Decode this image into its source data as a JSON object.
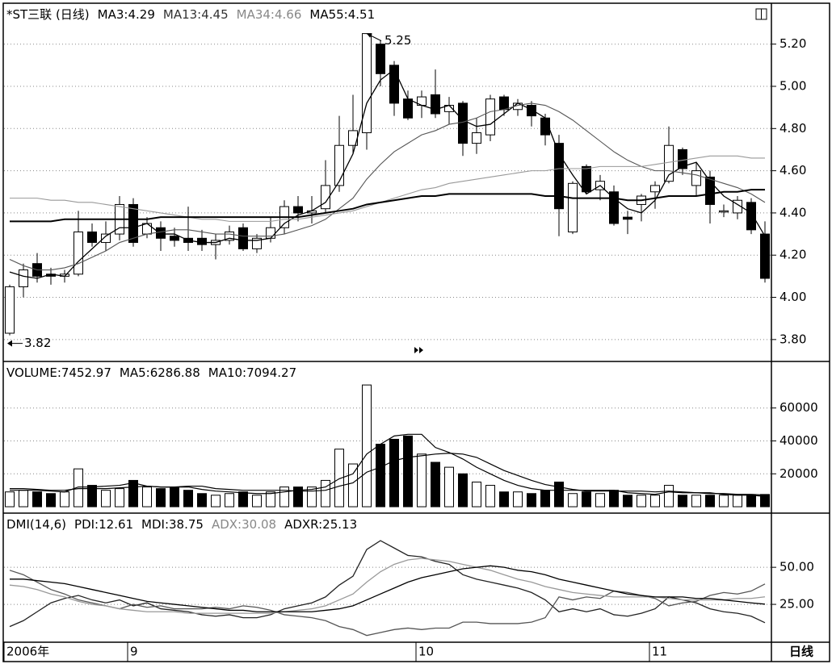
{
  "chart_data": [
    {
      "type": "candlestick",
      "title": "*ST三联 (日线)",
      "categories": [
        "2006年",
        null,
        null,
        null,
        null,
        null,
        null,
        null,
        null,
        "9",
        null,
        null,
        null,
        null,
        null,
        null,
        null,
        null,
        null,
        null,
        null,
        null,
        null,
        null,
        null,
        null,
        null,
        null,
        null,
        null,
        "10",
        null,
        null,
        null,
        null,
        null,
        null,
        null,
        null,
        null,
        null,
        null,
        null,
        null,
        null,
        null,
        null,
        "11",
        null,
        null,
        null,
        null,
        null,
        null,
        null,
        null
      ],
      "open": [
        3.83,
        4.05,
        4.16,
        4.11,
        4.1,
        4.11,
        4.31,
        4.26,
        4.3,
        4.44,
        4.3,
        4.33,
        4.29,
        4.28,
        4.28,
        4.25,
        4.27,
        4.33,
        4.23,
        4.28,
        4.33,
        4.43,
        4.4,
        4.42,
        4.53,
        4.72,
        4.78,
        5.2,
        5.1,
        4.94,
        4.91,
        4.96,
        4.88,
        4.92,
        4.73,
        4.77,
        4.95,
        4.89,
        4.91,
        4.85,
        4.73,
        4.31,
        4.62,
        4.51,
        4.5,
        4.38,
        4.44,
        4.5,
        4.55,
        4.7,
        4.53,
        4.57,
        4.41,
        4.4,
        4.45,
        4.3
      ],
      "high": [
        4.06,
        4.16,
        4.21,
        4.14,
        4.13,
        4.41,
        4.35,
        4.36,
        4.48,
        4.47,
        4.38,
        4.36,
        4.33,
        4.43,
        4.32,
        4.3,
        4.34,
        4.35,
        4.3,
        4.38,
        4.46,
        4.48,
        4.48,
        4.65,
        4.86,
        4.96,
        5.25,
        5.22,
        5.12,
        4.98,
        4.98,
        5.08,
        4.95,
        4.93,
        4.85,
        4.96,
        4.96,
        4.94,
        4.93,
        4.87,
        4.77,
        4.55,
        4.63,
        4.58,
        4.53,
        4.41,
        4.49,
        4.55,
        4.81,
        4.71,
        4.64,
        4.6,
        4.44,
        4.48,
        4.47,
        4.36
      ],
      "low": [
        3.82,
        4.0,
        4.07,
        4.06,
        4.07,
        4.1,
        4.24,
        4.22,
        4.27,
        4.24,
        4.28,
        4.22,
        4.24,
        4.22,
        4.22,
        4.18,
        4.25,
        4.22,
        4.21,
        4.26,
        4.3,
        4.36,
        4.35,
        4.4,
        4.5,
        4.68,
        4.7,
        5.0,
        4.86,
        4.84,
        4.85,
        4.85,
        4.82,
        4.67,
        4.68,
        4.74,
        4.86,
        4.86,
        4.81,
        4.72,
        4.29,
        4.3,
        4.49,
        4.46,
        4.34,
        4.3,
        4.36,
        4.42,
        4.54,
        4.58,
        4.48,
        4.35,
        4.38,
        4.37,
        4.3,
        4.07
      ],
      "close": [
        4.05,
        4.13,
        4.1,
        4.1,
        4.11,
        4.31,
        4.26,
        4.3,
        4.44,
        4.26,
        4.35,
        4.28,
        4.27,
        4.26,
        4.25,
        4.27,
        4.31,
        4.23,
        4.28,
        4.33,
        4.43,
        4.4,
        4.41,
        4.53,
        4.72,
        4.79,
        5.25,
        5.06,
        4.92,
        4.85,
        4.95,
        4.87,
        4.91,
        4.73,
        4.78,
        4.94,
        4.89,
        4.92,
        4.86,
        4.77,
        4.42,
        4.54,
        4.5,
        4.55,
        4.35,
        4.37,
        4.48,
        4.53,
        4.72,
        4.61,
        4.6,
        4.44,
        4.41,
        4.46,
        4.32,
        4.09
      ],
      "up_color": "#ffffff",
      "down_color": "#000000",
      "series": [
        {
          "name": "MA3:4.29",
          "color": "#000000",
          "values": [
            4.12,
            4.1,
            4.09,
            4.11,
            4.1,
            4.17,
            4.23,
            4.29,
            4.33,
            4.33,
            4.35,
            4.3,
            4.3,
            4.27,
            4.26,
            4.26,
            4.28,
            4.27,
            4.27,
            4.28,
            4.35,
            4.39,
            4.41,
            4.45,
            4.55,
            4.68,
            4.92,
            5.03,
            5.08,
            4.94,
            4.91,
            4.89,
            4.91,
            4.84,
            4.81,
            4.82,
            4.87,
            4.92,
            4.89,
            4.85,
            4.68,
            4.58,
            4.49,
            4.53,
            4.47,
            4.42,
            4.4,
            4.46,
            4.58,
            4.62,
            4.64,
            4.55,
            4.48,
            4.44,
            4.4,
            4.29
          ]
        },
        {
          "name": "MA13:4.45",
          "color": "#555555",
          "values": [
            4.18,
            4.15,
            4.13,
            4.13,
            4.14,
            4.16,
            4.19,
            4.22,
            4.26,
            4.28,
            4.3,
            4.31,
            4.32,
            4.32,
            4.31,
            4.3,
            4.3,
            4.29,
            4.29,
            4.29,
            4.3,
            4.32,
            4.34,
            4.37,
            4.42,
            4.47,
            4.56,
            4.63,
            4.69,
            4.73,
            4.77,
            4.79,
            4.82,
            4.83,
            4.85,
            4.88,
            4.89,
            4.91,
            4.92,
            4.91,
            4.88,
            4.84,
            4.79,
            4.74,
            4.69,
            4.65,
            4.62,
            4.6,
            4.6,
            4.59,
            4.58,
            4.56,
            4.54,
            4.52,
            4.49,
            4.45
          ]
        },
        {
          "name": "MA34:4.66",
          "color": "#999999",
          "values": [
            4.47,
            4.47,
            4.47,
            4.46,
            4.46,
            4.45,
            4.45,
            4.44,
            4.43,
            4.42,
            4.41,
            4.4,
            4.39,
            4.38,
            4.37,
            4.37,
            4.36,
            4.36,
            4.36,
            4.36,
            4.37,
            4.37,
            4.38,
            4.39,
            4.4,
            4.41,
            4.43,
            4.45,
            4.47,
            4.49,
            4.51,
            4.52,
            4.54,
            4.55,
            4.56,
            4.57,
            4.58,
            4.59,
            4.6,
            4.6,
            4.61,
            4.61,
            4.61,
            4.62,
            4.62,
            4.62,
            4.62,
            4.63,
            4.64,
            4.65,
            4.66,
            4.67,
            4.67,
            4.67,
            4.66,
            4.66
          ]
        },
        {
          "name": "MA55:4.51",
          "color": "#000000",
          "values": [
            4.36,
            4.36,
            4.36,
            4.36,
            4.37,
            4.37,
            4.37,
            4.37,
            4.37,
            4.37,
            4.37,
            4.38,
            4.38,
            4.38,
            4.38,
            4.38,
            4.38,
            4.38,
            4.38,
            4.38,
            4.38,
            4.38,
            4.39,
            4.4,
            4.41,
            4.42,
            4.44,
            4.45,
            4.46,
            4.47,
            4.48,
            4.48,
            4.49,
            4.49,
            4.49,
            4.49,
            4.49,
            4.49,
            4.49,
            4.48,
            4.48,
            4.47,
            4.47,
            4.47,
            4.47,
            4.46,
            4.46,
            4.47,
            4.48,
            4.48,
            4.48,
            4.49,
            4.5,
            4.5,
            4.51,
            4.51
          ]
        }
      ],
      "ylim": [
        3.7,
        5.39
      ],
      "yticks": [
        {
          "value": 3.8,
          "label": "3.80"
        },
        {
          "value": 4.0,
          "label": "4.00"
        },
        {
          "value": 4.2,
          "label": "4.20"
        },
        {
          "value": 4.4,
          "label": "4.40"
        },
        {
          "value": 4.6,
          "label": "4.60"
        },
        {
          "value": 4.8,
          "label": "4.80"
        },
        {
          "value": 5.0,
          "label": "5.00"
        },
        {
          "value": 5.2,
          "label": "5.20"
        }
      ],
      "grid": true,
      "annotations": [
        "5.25",
        "3.82"
      ],
      "period": "日线"
    },
    {
      "type": "bar",
      "series": [
        {
          "name": "VOLUME:7452.97",
          "color": "#000000",
          "values": [
            9000,
            10000,
            9000,
            8000,
            9000,
            23000,
            13000,
            10000,
            11000,
            16000,
            12000,
            11000,
            12000,
            10000,
            8000,
            7000,
            8000,
            9000,
            7000,
            9000,
            12000,
            12000,
            12000,
            16000,
            35000,
            26000,
            74000,
            38000,
            41000,
            43000,
            32000,
            27000,
            24000,
            20000,
            15000,
            13000,
            9000,
            9000,
            8000,
            10000,
            15000,
            8000,
            9000,
            8000,
            10000,
            7000,
            7000,
            7000,
            13000,
            7000,
            7000,
            7000,
            7000,
            7000,
            7000,
            7452.97
          ]
        },
        {
          "name": "MA5:6286.88",
          "color": "#000000",
          "values": [
            10000,
            10000,
            10000,
            9500,
            9000,
            12000,
            12000,
            12500,
            13000,
            14500,
            12500,
            12000,
            12000,
            12000,
            10500,
            9500,
            9000,
            8500,
            8000,
            8000,
            9000,
            10000,
            10500,
            12000,
            17000,
            20000,
            32000,
            38000,
            43000,
            44000,
            44000,
            36000,
            33000,
            29000,
            24000,
            20000,
            16000,
            13000,
            11000,
            10000,
            10000,
            10000,
            10000,
            10000,
            10000,
            8500,
            8000,
            7500,
            9000,
            8500,
            8500,
            8500,
            7500,
            7000,
            7000,
            6286.88
          ]
        },
        {
          "name": "MA10:7094.27",
          "color": "#000000",
          "values": [
            11000,
            11000,
            10500,
            10000,
            10000,
            11000,
            11000,
            11000,
            11500,
            12000,
            12500,
            12000,
            12000,
            12500,
            12500,
            11000,
            10500,
            10000,
            10000,
            10000,
            10000,
            9500,
            9500,
            10000,
            12500,
            14500,
            21000,
            24000,
            28000,
            30000,
            31000,
            32000,
            32500,
            32000,
            30000,
            26000,
            22000,
            19000,
            16000,
            13500,
            12000,
            10500,
            9500,
            9500,
            9500,
            9500,
            9500,
            9000,
            9500,
            9000,
            8500,
            8000,
            8000,
            7500,
            7500,
            7094.27
          ]
        }
      ],
      "ylim": [
        -3400,
        87800
      ],
      "yticks": [
        20000,
        40000,
        60000
      ],
      "grid": true
    },
    {
      "type": "line",
      "title": "DMI(14,6)",
      "series": [
        {
          "name": "PDI:12.61",
          "color": "#222222",
          "values": [
            10,
            14,
            20,
            26,
            29,
            31,
            28,
            26,
            28,
            24,
            26,
            22,
            21,
            20,
            18,
            17,
            18,
            16,
            16,
            18,
            22,
            24,
            26,
            30,
            38,
            44,
            62,
            68,
            63,
            58,
            57,
            54,
            52,
            45,
            42,
            40,
            38,
            36,
            33,
            28,
            20,
            22,
            20,
            22,
            18,
            17,
            19,
            22,
            30,
            28,
            26,
            22,
            20,
            19,
            17,
            12.61
          ]
        },
        {
          "name": "MDI:38.75",
          "color": "#555555",
          "values": [
            48,
            45,
            40,
            35,
            32,
            28,
            26,
            24,
            22,
            25,
            23,
            24,
            22,
            22,
            22,
            23,
            22,
            24,
            23,
            21,
            18,
            17,
            16,
            14,
            10,
            8,
            4,
            6,
            8,
            9,
            8,
            9,
            9,
            13,
            13,
            12,
            12,
            12,
            13,
            16,
            30,
            28,
            30,
            29,
            34,
            33,
            31,
            29,
            24,
            26,
            27,
            31,
            33,
            32,
            34,
            38.75
          ]
        },
        {
          "name": "ADX:30.08",
          "color": "#999999",
          "values": [
            38,
            37,
            35,
            32,
            30,
            27,
            25,
            24,
            22,
            21,
            20,
            20,
            20,
            19,
            19,
            19,
            19,
            19,
            19,
            19,
            20,
            21,
            22,
            24,
            28,
            32,
            40,
            47,
            52,
            55,
            56,
            55,
            54,
            52,
            50,
            48,
            45,
            42,
            40,
            37,
            35,
            33,
            32,
            31,
            30,
            30,
            30,
            30,
            29,
            28,
            28,
            28,
            28,
            29,
            29,
            30.08
          ]
        },
        {
          "name": "ADXR:25.13",
          "color": "#000000",
          "values": [
            42,
            42,
            41,
            40,
            39,
            37,
            35,
            33,
            31,
            29,
            27,
            26,
            25,
            24,
            23,
            22,
            21,
            21,
            20,
            20,
            20,
            20,
            20,
            21,
            22,
            24,
            28,
            32,
            36,
            40,
            43,
            45,
            47,
            49,
            50,
            51,
            50,
            48,
            47,
            45,
            42,
            40,
            38,
            36,
            34,
            32,
            31,
            30,
            30,
            30,
            29,
            29,
            28,
            27,
            26,
            25.13
          ]
        }
      ],
      "ylim": [
        0,
        86
      ],
      "yticks": [
        {
          "value": 25,
          "label": "25.00"
        },
        {
          "value": 50,
          "label": "50.00"
        }
      ],
      "grid": true
    }
  ]
}
